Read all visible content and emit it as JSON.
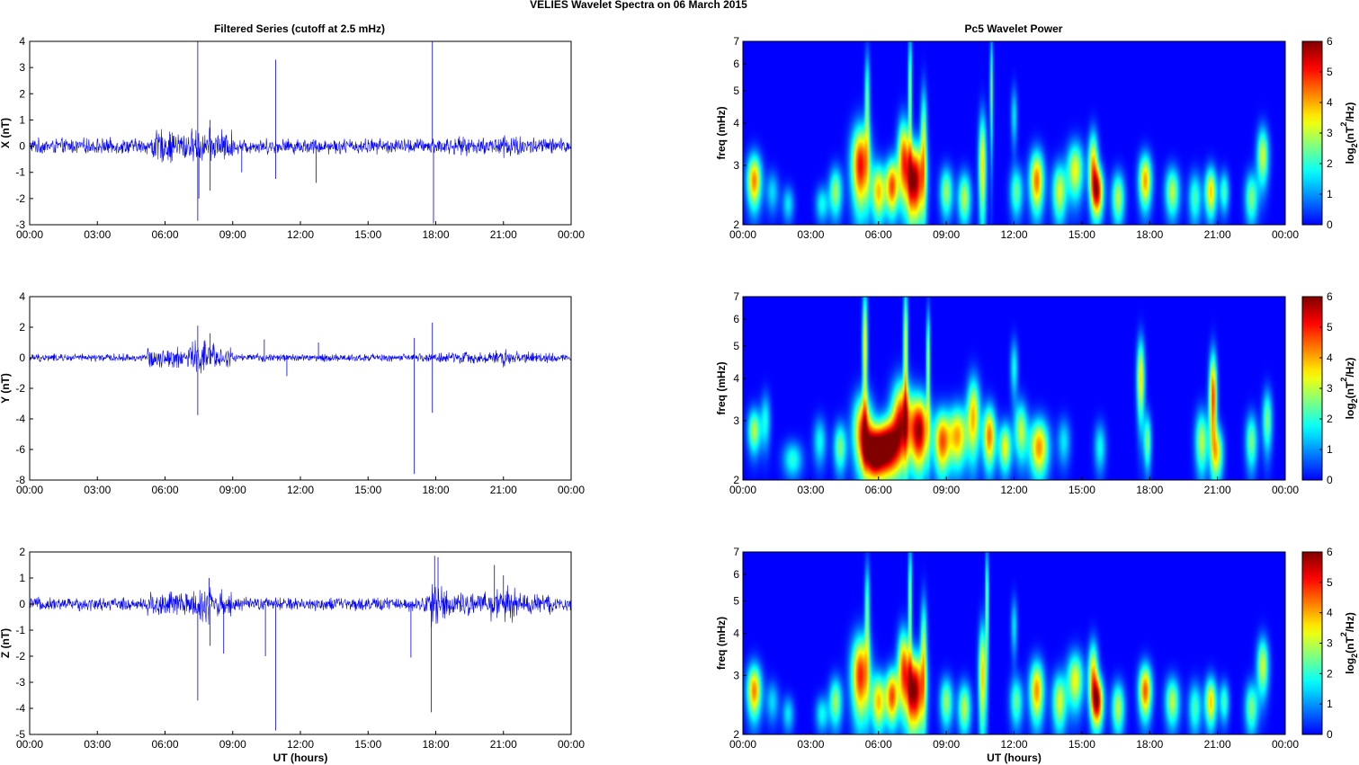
{
  "figure": {
    "suptitle": "VELIES Wavelet Spectra on 06 March      2015",
    "left_title": "Filtered Series (cutoff at 2.5 mHz)",
    "right_title": "Pc5 Wavelet Power",
    "xlabel": "UT (hours)",
    "freq_label": "freq (mHz)",
    "colorbar_label": "log2(nT2/Hz)",
    "colorbar_label_parts": [
      "log",
      "2",
      "(nT",
      "2",
      "/Hz)"
    ]
  },
  "colors": {
    "trace": "#0000ff",
    "background": "#00008f",
    "colormap": "jet"
  },
  "chart_data": [
    {
      "type": "line",
      "name": "X (nT)",
      "ylabel": "X (nT)",
      "xlim": [
        0,
        24
      ],
      "ylim": [
        -3,
        4
      ],
      "yticks": [
        "-3",
        "-2",
        "-1",
        "0",
        "1",
        "2",
        "3",
        "4"
      ],
      "xticks": [
        "00:00",
        "03:00",
        "06:00",
        "09:00",
        "12:00",
        "15:00",
        "18:00",
        "21:00",
        "00:00"
      ],
      "baseline_amplitude": 0.35,
      "activity": [
        [
          0,
          5,
          0.3
        ],
        [
          5.4,
          9.0,
          0.75
        ],
        [
          9.0,
          17.6,
          0.2
        ],
        [
          17.6,
          23.2,
          0.4
        ],
        [
          20.6,
          21.8,
          0.6
        ],
        [
          23.2,
          24,
          0.3
        ]
      ],
      "spikes": [
        [
          7.45,
          4.0
        ],
        [
          7.45,
          -2.85
        ],
        [
          8.0,
          1.0
        ],
        [
          8.0,
          -1.7
        ],
        [
          7.5,
          -2.0
        ],
        [
          10.9,
          3.3
        ],
        [
          10.9,
          -1.25
        ],
        [
          12.7,
          -1.4
        ],
        [
          17.85,
          4.0
        ],
        [
          17.9,
          -2.95
        ],
        [
          9.4,
          -1.0
        ]
      ]
    },
    {
      "type": "line",
      "name": "Y (nT)",
      "ylabel": "Y (nT)",
      "xlim": [
        0,
        24
      ],
      "ylim": [
        -8,
        4
      ],
      "yticks": [
        "-8",
        "-6",
        "-4",
        "-2",
        "0",
        "2",
        "4"
      ],
      "xticks": [
        "00:00",
        "03:00",
        "06:00",
        "09:00",
        "12:00",
        "15:00",
        "18:00",
        "21:00",
        "00:00"
      ],
      "baseline_amplitude": 0.3,
      "activity": [
        [
          0,
          5.2,
          0.25
        ],
        [
          5.2,
          9.0,
          0.8
        ],
        [
          7.0,
          8.2,
          1.4
        ],
        [
          9.0,
          17.6,
          0.25
        ],
        [
          17.6,
          23.2,
          0.45
        ],
        [
          20.6,
          21.6,
          0.7
        ],
        [
          23.2,
          24,
          0.25
        ]
      ],
      "spikes": [
        [
          7.45,
          2.1
        ],
        [
          7.45,
          -3.75
        ],
        [
          8.0,
          1.6
        ],
        [
          17.05,
          1.3
        ],
        [
          17.05,
          -7.6
        ],
        [
          17.85,
          2.3
        ],
        [
          17.85,
          -3.6
        ],
        [
          10.4,
          1.2
        ],
        [
          11.4,
          -1.2
        ],
        [
          12.8,
          1.0
        ]
      ]
    },
    {
      "type": "line",
      "name": "Z (nT)",
      "ylabel": "Z (nT)",
      "xlim": [
        0,
        24
      ],
      "ylim": [
        -5,
        2
      ],
      "yticks": [
        "-5",
        "-4",
        "-3",
        "-2",
        "-1",
        "0",
        "1",
        "2"
      ],
      "xticks": [
        "00:00",
        "03:00",
        "06:00",
        "09:00",
        "12:00",
        "15:00",
        "18:00",
        "21:00",
        "00:00"
      ],
      "xlabel": "UT (hours)",
      "baseline_amplitude": 0.3,
      "activity": [
        [
          0,
          5.2,
          0.25
        ],
        [
          5.2,
          9.0,
          0.6
        ],
        [
          7.4,
          8.1,
          1.0
        ],
        [
          9.0,
          17.4,
          0.25
        ],
        [
          17.4,
          23.2,
          0.5
        ],
        [
          17.8,
          18.5,
          1.2
        ],
        [
          20.4,
          21.6,
          0.8
        ],
        [
          23.2,
          24,
          0.25
        ]
      ],
      "spikes": [
        [
          7.45,
          -3.7
        ],
        [
          7.95,
          1.0
        ],
        [
          8.0,
          -1.6
        ],
        [
          8.6,
          -1.9
        ],
        [
          10.45,
          -2.0
        ],
        [
          10.9,
          -4.85
        ],
        [
          16.9,
          -2.05
        ],
        [
          17.8,
          -4.15
        ],
        [
          17.95,
          1.85
        ],
        [
          18.1,
          1.8
        ],
        [
          20.6,
          1.5
        ],
        [
          21.0,
          1.1
        ]
      ]
    },
    {
      "type": "heatmap",
      "name": "Pc5 wavelet power X",
      "ylabel": "freq (mHz)",
      "xlim": [
        0,
        24
      ],
      "ylim": [
        2,
        7
      ],
      "yscale": "log",
      "yticks": [
        "2",
        "3",
        "4",
        "5",
        "6",
        "7"
      ],
      "xticks": [
        "00:00",
        "03:00",
        "06:00",
        "09:00",
        "12:00",
        "15:00",
        "18:00",
        "21:00",
        "00:00"
      ],
      "colorbar": {
        "min": 0,
        "max": 6,
        "ticks": [
          "0",
          "1",
          "2",
          "3",
          "4",
          "5",
          "6"
        ]
      },
      "blobs": [
        [
          0.5,
          2.7,
          0.22,
          0.35,
          4.3
        ],
        [
          1.3,
          2.5,
          0.2,
          0.25,
          1.5
        ],
        [
          2.0,
          2.3,
          0.18,
          0.2,
          1.6
        ],
        [
          3.5,
          2.3,
          0.2,
          0.2,
          1.8
        ],
        [
          4.1,
          2.5,
          0.2,
          0.3,
          2.8
        ],
        [
          5.2,
          3.0,
          0.28,
          0.6,
          5.2
        ],
        [
          5.5,
          4.6,
          0.08,
          1.2,
          2.5
        ],
        [
          6.0,
          2.5,
          0.22,
          0.35,
          3.8
        ],
        [
          6.6,
          2.6,
          0.2,
          0.35,
          4.6
        ],
        [
          7.1,
          3.2,
          0.18,
          0.6,
          4.0
        ],
        [
          7.4,
          5.0,
          0.06,
          1.5,
          2.8
        ],
        [
          7.6,
          2.7,
          0.28,
          0.5,
          6.0
        ],
        [
          8.0,
          3.5,
          0.1,
          1.0,
          3.0
        ],
        [
          9.0,
          2.5,
          0.2,
          0.3,
          2.8
        ],
        [
          9.8,
          2.4,
          0.2,
          0.3,
          3.0
        ],
        [
          10.6,
          3.0,
          0.12,
          0.8,
          3.6
        ],
        [
          11.0,
          5.0,
          0.05,
          1.4,
          2.6
        ],
        [
          12.1,
          2.5,
          0.2,
          0.3,
          2.4
        ],
        [
          13.0,
          2.7,
          0.22,
          0.4,
          4.4
        ],
        [
          14.0,
          2.5,
          0.22,
          0.35,
          3.2
        ],
        [
          14.7,
          2.9,
          0.25,
          0.4,
          3.4
        ],
        [
          15.5,
          3.0,
          0.15,
          0.5,
          3.8
        ],
        [
          15.7,
          2.5,
          0.18,
          0.3,
          4.8
        ],
        [
          16.6,
          2.4,
          0.2,
          0.3,
          3.0
        ],
        [
          17.8,
          2.7,
          0.2,
          0.35,
          4.1
        ],
        [
          19.0,
          2.5,
          0.22,
          0.3,
          3.0
        ],
        [
          20.0,
          2.4,
          0.2,
          0.3,
          2.2
        ],
        [
          20.7,
          2.5,
          0.18,
          0.3,
          3.8
        ],
        [
          21.3,
          2.5,
          0.15,
          0.25,
          2.2
        ],
        [
          22.5,
          2.4,
          0.2,
          0.3,
          2.6
        ],
        [
          23.0,
          3.2,
          0.18,
          0.45,
          3.2
        ],
        [
          12.0,
          4.2,
          0.1,
          0.6,
          1.6
        ]
      ]
    },
    {
      "type": "heatmap",
      "name": "Pc5 wavelet power Y",
      "ylabel": "freq (mHz)",
      "xlim": [
        0,
        24
      ],
      "ylim": [
        2,
        7
      ],
      "yscale": "log",
      "yticks": [
        "2",
        "3",
        "4",
        "5",
        "6",
        "7"
      ],
      "xticks": [
        "00:00",
        "03:00",
        "06:00",
        "09:00",
        "12:00",
        "15:00",
        "18:00",
        "21:00",
        "00:00"
      ],
      "colorbar": {
        "min": 0,
        "max": 6,
        "ticks": [
          "0",
          "1",
          "2",
          "3",
          "4",
          "5",
          "6"
        ]
      },
      "blobs": [
        [
          0.5,
          2.8,
          0.2,
          0.3,
          3.0
        ],
        [
          1.0,
          3.0,
          0.15,
          0.4,
          1.8
        ],
        [
          2.2,
          2.3,
          0.3,
          0.2,
          2.0
        ],
        [
          3.4,
          2.6,
          0.2,
          0.3,
          1.8
        ],
        [
          4.3,
          2.5,
          0.2,
          0.3,
          2.6
        ],
        [
          5.3,
          2.8,
          0.3,
          0.5,
          4.6
        ],
        [
          5.8,
          2.4,
          0.3,
          0.3,
          5.6
        ],
        [
          5.4,
          5.0,
          0.08,
          1.5,
          3.6
        ],
        [
          6.4,
          2.5,
          0.35,
          0.35,
          6.0
        ],
        [
          7.0,
          3.0,
          0.3,
          0.6,
          5.0
        ],
        [
          7.2,
          5.0,
          0.07,
          1.6,
          3.4
        ],
        [
          7.8,
          2.8,
          0.3,
          0.5,
          5.8
        ],
        [
          8.2,
          4.5,
          0.06,
          1.2,
          3.0
        ],
        [
          8.8,
          2.6,
          0.25,
          0.4,
          4.4
        ],
        [
          9.5,
          2.7,
          0.3,
          0.4,
          4.0
        ],
        [
          10.2,
          3.1,
          0.2,
          0.6,
          3.8
        ],
        [
          10.9,
          2.7,
          0.2,
          0.4,
          4.4
        ],
        [
          11.6,
          2.5,
          0.2,
          0.3,
          3.4
        ],
        [
          12.3,
          2.8,
          0.2,
          0.4,
          3.0
        ],
        [
          13.1,
          2.5,
          0.3,
          0.35,
          4.2
        ],
        [
          14.2,
          2.6,
          0.2,
          0.3,
          1.6
        ],
        [
          15.8,
          2.5,
          0.18,
          0.3,
          1.8
        ],
        [
          17.6,
          4.0,
          0.12,
          0.8,
          3.6
        ],
        [
          17.9,
          2.6,
          0.12,
          0.35,
          2.6
        ],
        [
          20.3,
          2.6,
          0.2,
          0.4,
          3.0
        ],
        [
          20.8,
          3.5,
          0.12,
          0.8,
          4.8
        ],
        [
          21.0,
          2.4,
          0.18,
          0.3,
          3.2
        ],
        [
          22.5,
          2.6,
          0.18,
          0.35,
          2.6
        ],
        [
          23.2,
          3.0,
          0.15,
          0.45,
          2.6
        ],
        [
          12.0,
          4.3,
          0.12,
          0.6,
          1.8
        ]
      ]
    },
    {
      "type": "heatmap",
      "name": "Pc5 wavelet power Z",
      "ylabel": "freq (mHz)",
      "xlabel": "UT (hours)",
      "xlim": [
        0,
        24
      ],
      "ylim": [
        2,
        7
      ],
      "yscale": "log",
      "yticks": [
        "2",
        "3",
        "4",
        "5",
        "6",
        "7"
      ],
      "xticks": [
        "00:00",
        "03:00",
        "06:00",
        "09:00",
        "12:00",
        "15:00",
        "18:00",
        "21:00",
        "00:00"
      ],
      "colorbar": {
        "min": 0,
        "max": 6,
        "ticks": [
          "0",
          "1",
          "2",
          "3",
          "4",
          "5",
          "6"
        ]
      },
      "blobs": [
        [
          0.5,
          2.7,
          0.22,
          0.35,
          4.3
        ],
        [
          1.3,
          2.5,
          0.2,
          0.25,
          1.5
        ],
        [
          2.0,
          2.3,
          0.18,
          0.2,
          1.6
        ],
        [
          3.5,
          2.3,
          0.2,
          0.2,
          1.8
        ],
        [
          4.1,
          2.5,
          0.2,
          0.3,
          2.8
        ],
        [
          5.2,
          3.0,
          0.28,
          0.6,
          5.0
        ],
        [
          5.5,
          4.6,
          0.08,
          1.2,
          2.5
        ],
        [
          6.0,
          2.5,
          0.22,
          0.35,
          3.8
        ],
        [
          6.6,
          2.6,
          0.2,
          0.35,
          4.6
        ],
        [
          7.1,
          3.2,
          0.18,
          0.6,
          4.0
        ],
        [
          7.4,
          5.0,
          0.06,
          1.5,
          2.8
        ],
        [
          7.6,
          2.7,
          0.28,
          0.5,
          6.0
        ],
        [
          8.0,
          3.5,
          0.1,
          1.0,
          3.0
        ],
        [
          9.0,
          2.5,
          0.2,
          0.3,
          2.8
        ],
        [
          9.8,
          2.4,
          0.2,
          0.3,
          3.0
        ],
        [
          10.6,
          3.0,
          0.12,
          0.8,
          3.8
        ],
        [
          10.8,
          5.0,
          0.05,
          1.4,
          2.8
        ],
        [
          12.1,
          2.5,
          0.2,
          0.3,
          2.4
        ],
        [
          13.0,
          2.7,
          0.22,
          0.4,
          4.2
        ],
        [
          14.0,
          2.5,
          0.22,
          0.35,
          3.2
        ],
        [
          14.7,
          2.9,
          0.25,
          0.4,
          3.4
        ],
        [
          15.5,
          3.0,
          0.15,
          0.5,
          3.8
        ],
        [
          15.7,
          2.5,
          0.18,
          0.3,
          5.0
        ],
        [
          16.6,
          2.4,
          0.2,
          0.3,
          3.0
        ],
        [
          17.8,
          2.7,
          0.2,
          0.35,
          4.6
        ],
        [
          19.0,
          2.5,
          0.22,
          0.3,
          3.0
        ],
        [
          20.0,
          2.4,
          0.2,
          0.3,
          2.2
        ],
        [
          20.7,
          2.5,
          0.18,
          0.3,
          3.8
        ],
        [
          21.3,
          2.5,
          0.15,
          0.25,
          2.2
        ],
        [
          22.5,
          2.4,
          0.2,
          0.3,
          2.6
        ],
        [
          23.0,
          3.2,
          0.18,
          0.45,
          3.2
        ],
        [
          12.0,
          4.2,
          0.1,
          0.6,
          1.6
        ]
      ]
    }
  ]
}
